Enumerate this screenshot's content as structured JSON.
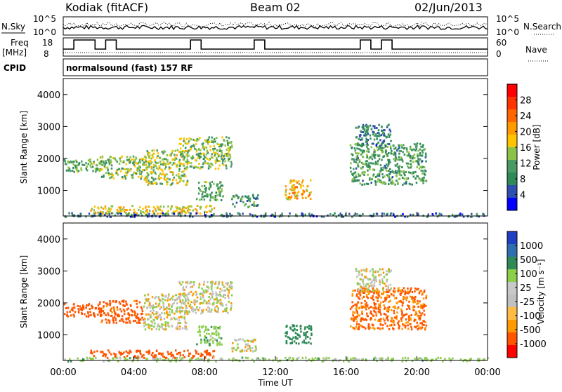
{
  "header": {
    "station": "Kodiak (fitACF)",
    "beam": "Beam 02",
    "date": "02/Jun/2013",
    "cpid_text": "normalsound (fast) 157 RF"
  },
  "noise_panel": {
    "left_label": "N.Sky",
    "right_label": "N.Search",
    "left_ticks": [
      "10^5",
      "10^0"
    ],
    "right_ticks": [
      "10^5",
      "10^0"
    ]
  },
  "freq_panel": {
    "left_label_line1": "Freq",
    "left_label_line2": "[MHz]",
    "right_label": "Nave",
    "left_ticks": [
      "18",
      "8"
    ],
    "right_ticks": [
      "60",
      "0"
    ],
    "cpid_label": "CPID"
  },
  "colors": {
    "power": [
      "#0000ff",
      "#2f4fb0",
      "#2e8b57",
      "#4a9a64",
      "#8bc34a",
      "#ffc400",
      "#ff9900",
      "#ff6600",
      "#ff3300",
      "#ff0000"
    ],
    "velocity": [
      "#ff0000",
      "#ff5500",
      "#ff9900",
      "#ffbb44",
      "#c0c0c0",
      "#c8c8c8",
      "#8ccf4a",
      "#2e8b57",
      "#2f6fb0",
      "#1f3fc0"
    ]
  },
  "chart_data": [
    {
      "type": "heatmap",
      "panel": "power",
      "ylabel": "Slant Range [km]",
      "yticks": [
        "1000",
        "2000",
        "3000",
        "4000"
      ],
      "ylim": [
        200,
        4500
      ],
      "xlim": [
        0,
        24
      ],
      "colorbar_label": "Power [dB]",
      "colorbar_ticks": [
        "4",
        "8",
        "12",
        "16",
        "20",
        "24",
        "28"
      ],
      "colorbar_range": [
        0,
        32
      ],
      "regions": [
        {
          "t0": 0.0,
          "t1": 2.2,
          "r0": 1600,
          "r1": 2000,
          "level": 10
        },
        {
          "t0": 2.0,
          "t1": 4.5,
          "r0": 1400,
          "r1": 2100,
          "level": 12
        },
        {
          "t0": 4.5,
          "t1": 7.0,
          "r0": 1200,
          "r1": 2300,
          "level": 14
        },
        {
          "t0": 6.5,
          "t1": 9.5,
          "r0": 1700,
          "r1": 2700,
          "level": 12
        },
        {
          "t0": 7.5,
          "t1": 9.0,
          "r0": 700,
          "r1": 1300,
          "level": 10
        },
        {
          "t0": 9.5,
          "t1": 11.0,
          "r0": 500,
          "r1": 900,
          "level": 8
        },
        {
          "t0": 1.5,
          "t1": 8.5,
          "r0": 300,
          "r1": 550,
          "level": 16
        },
        {
          "t0": 12.5,
          "t1": 14.0,
          "r0": 750,
          "r1": 1350,
          "level": 18
        },
        {
          "t0": 16.2,
          "t1": 20.5,
          "r0": 1200,
          "r1": 2500,
          "level": 9
        },
        {
          "t0": 16.5,
          "t1": 18.5,
          "r0": 2400,
          "r1": 3100,
          "level": 6
        },
        {
          "t0": 0.0,
          "t1": 24.0,
          "r0": 200,
          "r1": 320,
          "level": 5
        }
      ]
    },
    {
      "type": "heatmap",
      "panel": "velocity",
      "ylabel": "Slant Range [km]",
      "yticks": [
        "1000",
        "2000",
        "3000",
        "4000"
      ],
      "ylim": [
        200,
        4500
      ],
      "xlim": [
        0,
        24
      ],
      "xlabel": "Time UT",
      "xticks": [
        "00:00",
        "04:00",
        "08:00",
        "12:00",
        "16:00",
        "20:00",
        "00:00"
      ],
      "colorbar_label": "Velocity [m s⁻¹]",
      "colorbar_ticks": [
        "1000",
        "500",
        "100",
        "25",
        "-25",
        "-100",
        "-500",
        "-1000"
      ],
      "regions": [
        {
          "t0": 0.0,
          "t1": 2.2,
          "r0": 1600,
          "r1": 2000,
          "v": -300
        },
        {
          "t0": 2.0,
          "t1": 4.5,
          "r0": 1400,
          "r1": 2100,
          "v": -150
        },
        {
          "t0": 4.5,
          "t1": 7.0,
          "r0": 1200,
          "r1": 2300,
          "v": 0
        },
        {
          "t0": 6.5,
          "t1": 9.5,
          "r0": 1700,
          "r1": 2700,
          "v": 0
        },
        {
          "t0": 7.5,
          "t1": 9.0,
          "r0": 700,
          "r1": 1300,
          "v": 80
        },
        {
          "t0": 9.5,
          "t1": 11.0,
          "r0": 500,
          "r1": 900,
          "v": 0
        },
        {
          "t0": 1.5,
          "t1": 8.5,
          "r0": 300,
          "r1": 550,
          "v": -200
        },
        {
          "t0": 12.5,
          "t1": 14.0,
          "r0": 750,
          "r1": 1350,
          "v": 300
        },
        {
          "t0": 16.2,
          "t1": 20.5,
          "r0": 1200,
          "r1": 2500,
          "v": -120
        },
        {
          "t0": 16.5,
          "t1": 18.5,
          "r0": 2400,
          "r1": 3100,
          "v": 0
        },
        {
          "t0": 0.0,
          "t1": 24.0,
          "r0": 200,
          "r1": 320,
          "v": 50
        }
      ]
    }
  ]
}
